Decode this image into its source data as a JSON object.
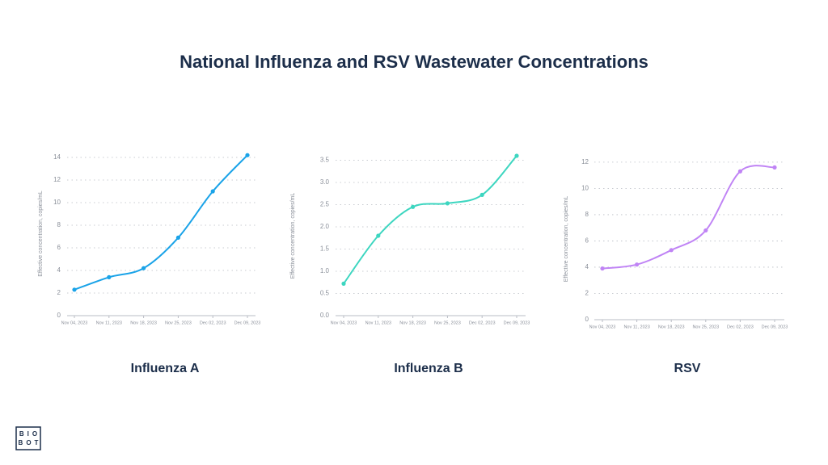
{
  "title": "National Influenza and RSV Wastewater Concentrations",
  "logo": [
    "BIO",
    "BOT"
  ],
  "chart_data": [
    {
      "type": "line",
      "title": "Influenza A",
      "y_label": "Effective concentration, copies/mL",
      "categories": [
        "Nov 04, 2023",
        "Nov 11, 2023",
        "Nov 18, 2023",
        "Nov 25, 2023",
        "Dec 02, 2023",
        "Dec 09, 2023"
      ],
      "series": [
        {
          "name": "Influenza A",
          "color": "#1aa3e8",
          "values": [
            2.3,
            3.4,
            4.2,
            6.9,
            11.0,
            14.2
          ]
        }
      ],
      "ylim": [
        0,
        14.5
      ],
      "yticks": [
        0,
        2,
        4,
        6,
        8,
        10,
        12,
        14
      ],
      "grid": true
    },
    {
      "type": "line",
      "title": "Influenza B",
      "y_label": "Effective concentration, copies/mL",
      "categories": [
        "Nov 04, 2023",
        "Nov 11, 2023",
        "Nov 18, 2023",
        "Nov 25, 2023",
        "Dec 02, 2023",
        "Dec 09, 2023"
      ],
      "series": [
        {
          "name": "Influenza B",
          "color": "#3dd6c0",
          "values": [
            0.72,
            1.8,
            2.45,
            2.53,
            2.72,
            3.6
          ]
        }
      ],
      "ylim": [
        0,
        3.6
      ],
      "yticks": [
        {
          "value": 0,
          "label": "0.0"
        },
        0.5,
        {
          "value": 1,
          "label": "1.0"
        },
        1.5,
        {
          "value": 2,
          "label": "2.0"
        },
        2.5,
        {
          "value": 3,
          "label": "3.0"
        },
        3.5
      ],
      "grid": true
    },
    {
      "type": "line",
      "title": "RSV",
      "y_label": "Effective concentration, copies/mL",
      "categories": [
        "Nov 04, 2023",
        "Nov 11, 2023",
        "Nov 18, 2023",
        "Nov 25, 2023",
        "Dec 02, 2023",
        "Dec 09, 2023"
      ],
      "series": [
        {
          "name": "RSV",
          "color": "#c084f5",
          "values": [
            3.9,
            4.2,
            5.3,
            6.8,
            11.3,
            11.6
          ]
        }
      ],
      "ylim": [
        0,
        12.3
      ],
      "yticks": [
        0,
        2,
        4,
        6,
        8,
        10,
        12
      ],
      "grid": true
    }
  ]
}
